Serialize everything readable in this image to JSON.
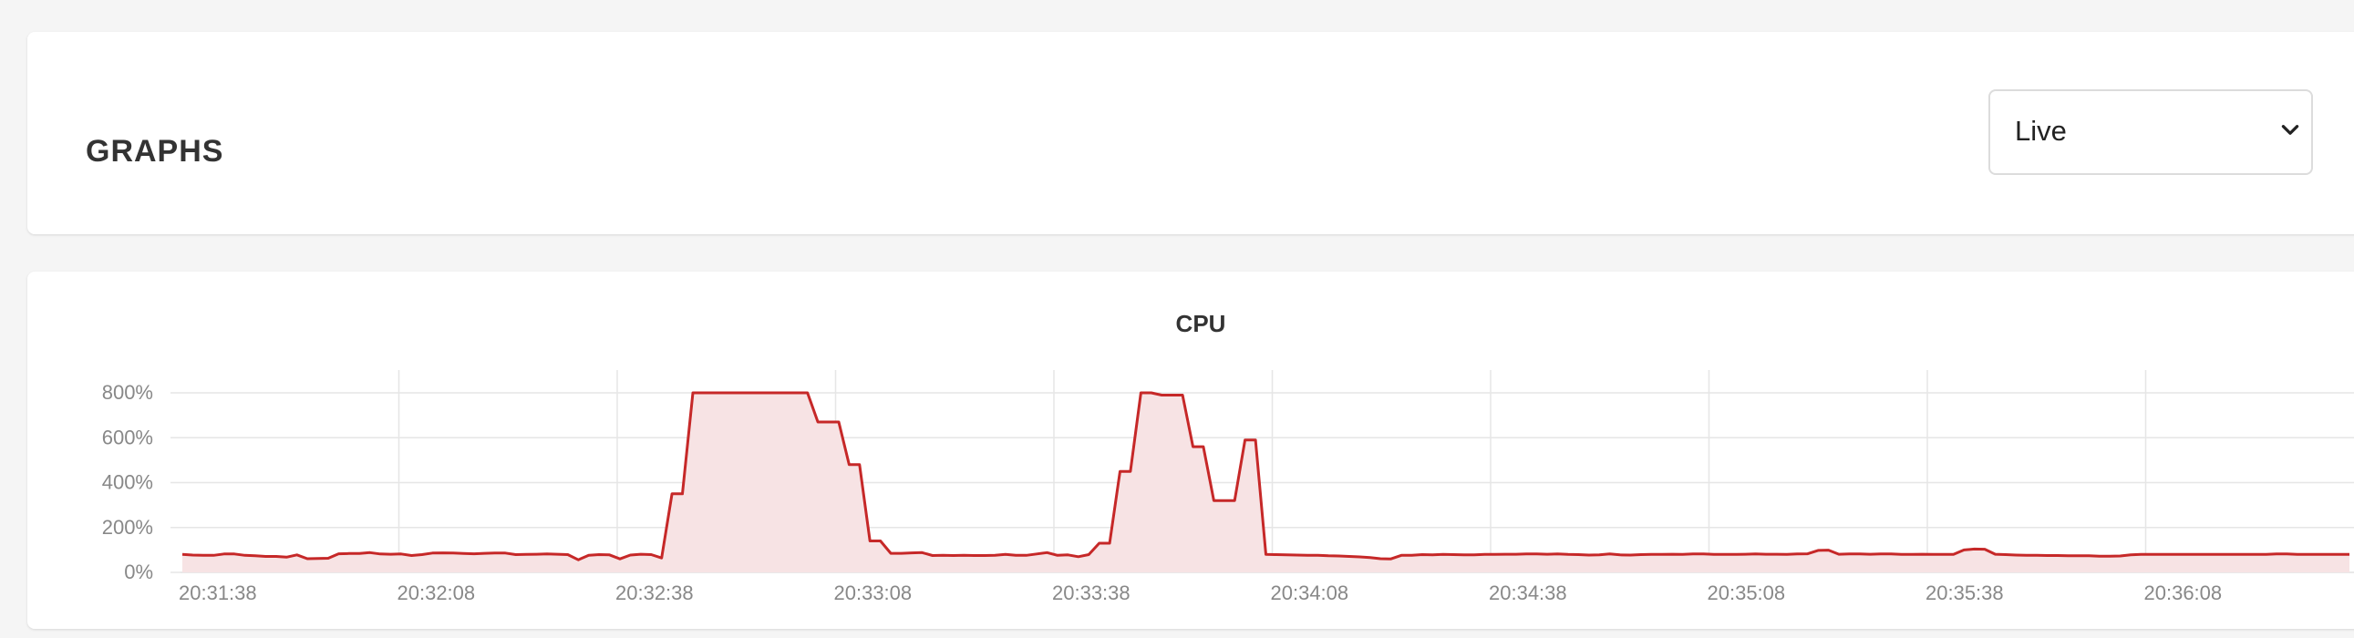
{
  "page": {
    "title": "GRAPHS"
  },
  "range_select": {
    "value": "Live"
  },
  "icons": {
    "select_arrow": "chevron-down-icon"
  },
  "colors": {
    "series": "#c62828",
    "fill": "#f7e3e4",
    "grid": "#e6e6e6"
  },
  "chart_data": {
    "type": "area",
    "title": "CPU",
    "y_ticks": [
      "800%",
      "600%",
      "400%",
      "200%",
      "0%"
    ],
    "x_ticks": [
      "20:31:38",
      "20:32:08",
      "20:32:38",
      "20:33:08",
      "20:33:38",
      "20:34:08",
      "20:34:38",
      "20:35:08",
      "20:35:38",
      "20:36:08"
    ],
    "ylim": [
      0,
      800
    ],
    "grid": true,
    "series": [
      {
        "values": [
          80,
          77,
          76,
          76,
          82,
          82,
          76,
          74,
          71,
          71,
          68,
          78,
          61,
          62,
          63,
          83,
          84,
          84,
          88,
          82,
          81,
          82,
          75,
          79,
          86,
          87,
          86,
          84,
          83,
          85,
          86,
          86,
          79,
          80,
          81,
          82,
          81,
          79,
          56,
          76,
          79,
          78,
          60,
          77,
          81,
          79,
          64,
          350,
          350,
          800,
          800,
          800,
          800,
          800,
          800,
          800,
          800,
          800,
          800,
          800,
          800,
          670,
          670,
          670,
          480,
          480,
          140,
          140,
          85,
          85,
          87,
          88,
          75,
          76,
          75,
          76,
          75,
          75,
          76,
          80,
          76,
          76,
          82,
          88,
          76,
          78,
          70,
          79,
          130,
          130,
          450,
          450,
          800,
          800,
          790,
          790,
          790,
          560,
          560,
          320,
          320,
          320,
          590,
          590,
          80,
          79,
          78,
          77,
          76,
          76,
          74,
          73,
          71,
          69,
          66,
          61,
          60,
          76,
          76,
          79,
          78,
          80,
          79,
          78,
          78,
          80,
          80,
          81,
          81,
          82,
          82,
          81,
          82,
          80,
          79,
          77,
          78,
          82,
          78,
          77,
          79,
          80,
          80,
          81,
          80,
          82,
          82,
          80,
          80,
          80,
          81,
          82,
          81,
          81,
          80,
          82,
          83,
          98,
          99,
          81,
          82,
          82,
          81,
          82,
          82,
          80,
          80,
          81,
          80,
          80,
          80,
          100,
          104,
          103,
          81,
          79,
          77,
          76,
          76,
          75,
          75,
          74,
          74,
          74,
          72,
          72,
          73,
          78,
          80,
          80,
          80,
          80,
          80,
          80,
          80,
          80,
          80,
          80,
          80,
          80,
          80,
          82,
          82,
          80,
          80,
          80,
          80,
          80,
          80
        ]
      }
    ]
  }
}
